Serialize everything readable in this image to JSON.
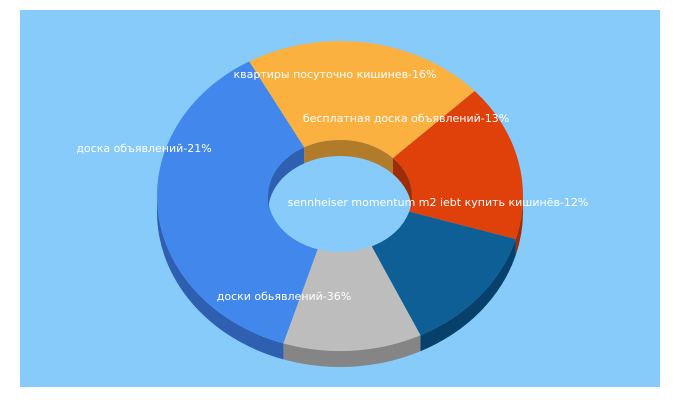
{
  "colors": {
    "background": "#86cbfa",
    "label": "#ffffff"
  },
  "chart_data": {
    "type": "pie",
    "style": "3d-donut",
    "title": "",
    "slices": [
      {
        "label": "доски обьявлений-36%",
        "value": 36,
        "color": "#4287ec",
        "side": "#2e5fb0"
      },
      {
        "label": "доска объявлений-21%",
        "value": 21,
        "color": "#fab140",
        "side": "#b27b2a"
      },
      {
        "label": "квартиры посуточно кишинев-16%",
        "value": 16,
        "color": "#e0400a",
        "side": "#9d2c07"
      },
      {
        "label": "бесплатная доска объявлений-13%",
        "value": 13,
        "color": "#0d5f96",
        "side": "#07406a"
      },
      {
        "label": "sennheiser momentum m2 iebt купить кишинёв-12%",
        "value": 12,
        "color": "#bdbdbd",
        "side": "#858585"
      }
    ]
  }
}
